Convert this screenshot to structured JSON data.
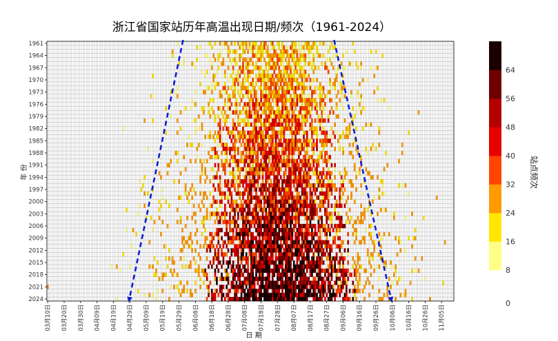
{
  "chart_data": {
    "type": "heatmap",
    "title": "浙江省国家站历年高温出现日期/频次（1961-2024）",
    "xlabel": "日 期",
    "ylabel": "年 份",
    "x_tick_labels": [
      "03月10日",
      "03月20日",
      "03月30日",
      "04月09日",
      "04月19日",
      "04月29日",
      "05月09日",
      "05月19日",
      "05月29日",
      "06月08日",
      "06月18日",
      "06月28日",
      "07月08日",
      "07月18日",
      "07月28日",
      "08月07日",
      "08月17日",
      "08月27日",
      "09月06日",
      "09月16日",
      "09月26日",
      "10月06日",
      "10月16日",
      "10月26日",
      "11月05日"
    ],
    "y_tick_labels": [
      "1961",
      "1964",
      "1967",
      "1970",
      "1973",
      "1976",
      "1979",
      "1982",
      "1985",
      "1988",
      "1991",
      "1994",
      "1997",
      "2000",
      "2003",
      "2006",
      "2009",
      "2012",
      "2015",
      "2018",
      "2021",
      "2024"
    ],
    "x_range": [
      "03月10日",
      "11月12日"
    ],
    "y_range": [
      1961,
      2024
    ],
    "colorbar": {
      "label": "站点频次",
      "ticks": [
        "0",
        "8",
        "16",
        "24",
        "32",
        "40",
        "48",
        "56",
        "64"
      ],
      "colors": [
        "#ffff88",
        "#ffe600",
        "#ff9a00",
        "#ff4500",
        "#e60000",
        "#b40000",
        "#6e0000",
        "#1a0000"
      ]
    },
    "annotations": {
      "early_trend": {
        "from": [
          1961,
          "06月01日"
        ],
        "to": [
          2024,
          "04月29日"
        ],
        "style": "blue dashed arrow"
      },
      "late_trend": {
        "from": [
          1961,
          "09月01日"
        ],
        "to": [
          2024,
          "10月06日"
        ],
        "style": "blue dashed arrow"
      }
    },
    "grid": true,
    "cell_note": "one cell per day per year; colour = number of national stations with high temperature that day"
  }
}
